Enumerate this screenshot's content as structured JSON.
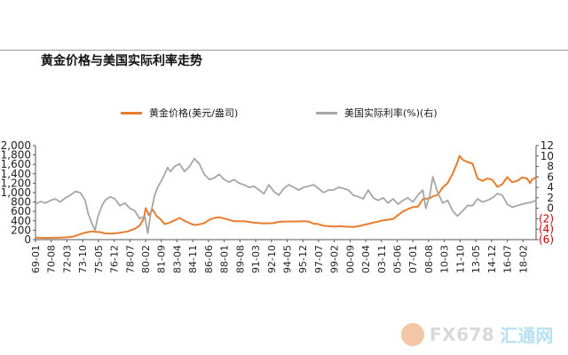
{
  "title": "黄金价格与美国实际利率走势",
  "legend": [
    {
      "label": "黄金价格(美元/盎司)",
      "color": "#e97d2e"
    },
    {
      "label": "美国实际利率(%)(右)",
      "color": "#a6a6a6"
    }
  ],
  "watermark": {
    "brand": "FX678",
    "cn": "汇通网"
  },
  "chart_data": {
    "type": "line",
    "title": "黄金价格与美国实际利率走势",
    "xlabel": "",
    "ylabel": "",
    "ylabel_right": "",
    "ylim_left": [
      0,
      2000
    ],
    "ylim_right": [
      -6,
      12
    ],
    "yticks_left": [
      "2,000",
      "1,800",
      "1,600",
      "1,400",
      "1,200",
      "1,000",
      "800",
      "600",
      "400",
      "200",
      "0"
    ],
    "yticks_right": [
      "12",
      "10",
      "8",
      "6",
      "4",
      "2",
      "0",
      "(2)",
      "(4)",
      "(6)"
    ],
    "xticks": [
      "69-01",
      "70-08",
      "72-03",
      "73-10",
      "75-05",
      "76-12",
      "78-07",
      "80-02",
      "81-09",
      "83-04",
      "84-11",
      "86-06",
      "88-01",
      "89-08",
      "91-03",
      "92-10",
      "94-05",
      "95-12",
      "97-07",
      "99-02",
      "00-09",
      "02-04",
      "03-11",
      "05-06",
      "07-01",
      "08-08",
      "10-03",
      "11-10",
      "13-05",
      "14-12",
      "16-07",
      "18-02"
    ],
    "x_start_year": 1969.0,
    "x_end_year": 2019.4,
    "grid": false,
    "legend_position": "top",
    "series": [
      {
        "name": "黄金价格(美元/盎司)",
        "axis": "left",
        "color": "#e97d2e",
        "x": [
          1969.0,
          1970.0,
          1971.0,
          1972.0,
          1972.8,
          1973.3,
          1974.0,
          1974.7,
          1975.0,
          1975.5,
          1976.0,
          1976.7,
          1977.5,
          1978.3,
          1979.0,
          1979.5,
          1979.9,
          1980.1,
          1980.4,
          1980.8,
          1981.2,
          1981.6,
          1982.0,
          1982.5,
          1983.0,
          1983.5,
          1984.0,
          1984.5,
          1985.0,
          1985.5,
          1986.0,
          1986.5,
          1987.0,
          1987.5,
          1988.0,
          1989.0,
          1990.0,
          1991.0,
          1992.0,
          1993.0,
          1993.5,
          1994.0,
          1995.0,
          1996.0,
          1996.5,
          1997.0,
          1997.5,
          1998.0,
          1999.0,
          1999.7,
          2000.0,
          2001.0,
          2001.5,
          2002.0,
          2003.0,
          2004.0,
          2005.0,
          2006.0,
          2006.5,
          2007.0,
          2007.5,
          2008.0,
          2008.7,
          2009.0,
          2009.5,
          2010.0,
          2010.5,
          2011.0,
          2011.4,
          2011.7,
          2012.0,
          2012.5,
          2013.0,
          2013.5,
          2014.0,
          2014.5,
          2015.0,
          2015.5,
          2016.0,
          2016.5,
          2017.0,
          2017.5,
          2018.0,
          2018.5,
          2018.8,
          2019.0,
          2019.4
        ],
        "values": [
          42,
          36,
          40,
          48,
          65,
          100,
          150,
          175,
          165,
          160,
          132,
          128,
          145,
          175,
          230,
          300,
          450,
          670,
          520,
          640,
          500,
          430,
          330,
          360,
          410,
          460,
          400,
          350,
          310,
          325,
          350,
          420,
          460,
          475,
          450,
          390,
          390,
          360,
          345,
          350,
          380,
          385,
          385,
          390,
          385,
          340,
          330,
          295,
          280,
          285,
          280,
          270,
          285,
          310,
          360,
          410,
          440,
          600,
          650,
          690,
          700,
          860,
          880,
          920,
          950,
          1110,
          1200,
          1400,
          1600,
          1780,
          1700,
          1650,
          1620,
          1300,
          1250,
          1300,
          1270,
          1120,
          1180,
          1330,
          1220,
          1250,
          1320,
          1300,
          1200,
          1280,
          1320
        ]
      },
      {
        "name": "美国实际利率(%)(右)",
        "axis": "right",
        "color": "#a6a6a6",
        "x": [
          1969.0,
          1969.5,
          1970.0,
          1970.5,
          1971.0,
          1971.5,
          1972.0,
          1972.5,
          1973.0,
          1973.5,
          1974.0,
          1974.3,
          1974.7,
          1975.0,
          1975.3,
          1975.7,
          1976.0,
          1976.5,
          1977.0,
          1977.5,
          1978.0,
          1978.5,
          1979.0,
          1979.5,
          1980.0,
          1980.3,
          1980.6,
          1981.0,
          1981.3,
          1981.6,
          1982.0,
          1982.3,
          1982.6,
          1983.0,
          1983.5,
          1984.0,
          1984.5,
          1985.0,
          1985.5,
          1986.0,
          1986.5,
          1987.0,
          1987.5,
          1988.0,
          1988.5,
          1989.0,
          1989.5,
          1990.0,
          1990.5,
          1991.0,
          1991.5,
          1992.0,
          1992.5,
          1993.0,
          1993.5,
          1994.0,
          1994.5,
          1995.0,
          1995.5,
          1996.0,
          1996.5,
          1997.0,
          1997.5,
          1998.0,
          1998.5,
          1999.0,
          1999.5,
          2000.0,
          2000.5,
          2001.0,
          2001.5,
          2002.0,
          2002.5,
          2003.0,
          2003.5,
          2004.0,
          2004.5,
          2005.0,
          2005.5,
          2006.0,
          2006.5,
          2007.0,
          2007.5,
          2008.0,
          2008.3,
          2008.7,
          2009.0,
          2009.5,
          2010.0,
          2010.5,
          2011.0,
          2011.5,
          2012.0,
          2012.5,
          2013.0,
          2013.5,
          2014.0,
          2014.5,
          2015.0,
          2015.5,
          2016.0,
          2016.5,
          2017.0,
          2017.5,
          2018.0,
          2018.5,
          2019.0,
          2019.4
        ],
        "values": [
          0.8,
          1.3,
          1.0,
          1.5,
          1.8,
          1.2,
          2.0,
          2.5,
          3.2,
          3.0,
          1.5,
          -1.0,
          -3.0,
          -4.2,
          -1.5,
          0.5,
          1.5,
          2.2,
          1.8,
          0.5,
          1.0,
          0.0,
          -0.5,
          -2.0,
          -1.5,
          -4.8,
          -1.0,
          2.5,
          4.0,
          5.0,
          6.5,
          7.8,
          7.0,
          8.0,
          8.5,
          7.0,
          8.0,
          9.5,
          8.5,
          6.5,
          5.5,
          5.8,
          6.5,
          5.5,
          5.0,
          5.5,
          4.8,
          4.5,
          4.0,
          4.2,
          3.5,
          2.8,
          4.5,
          3.2,
          2.5,
          3.8,
          4.5,
          4.0,
          3.5,
          4.0,
          4.2,
          4.5,
          3.8,
          3.0,
          3.5,
          3.5,
          4.0,
          3.8,
          3.5,
          2.5,
          2.2,
          1.8,
          3.5,
          2.0,
          1.5,
          2.0,
          1.0,
          1.8,
          0.8,
          1.5,
          2.0,
          1.2,
          2.5,
          3.5,
          0.0,
          2.5,
          6.0,
          3.0,
          1.0,
          1.5,
          -0.5,
          -1.5,
          -0.5,
          0.5,
          0.5,
          1.8,
          1.2,
          1.5,
          2.0,
          2.8,
          2.5,
          0.8,
          0.2,
          0.5,
          0.8,
          1.0,
          1.2,
          1.5
        ]
      }
    ]
  }
}
